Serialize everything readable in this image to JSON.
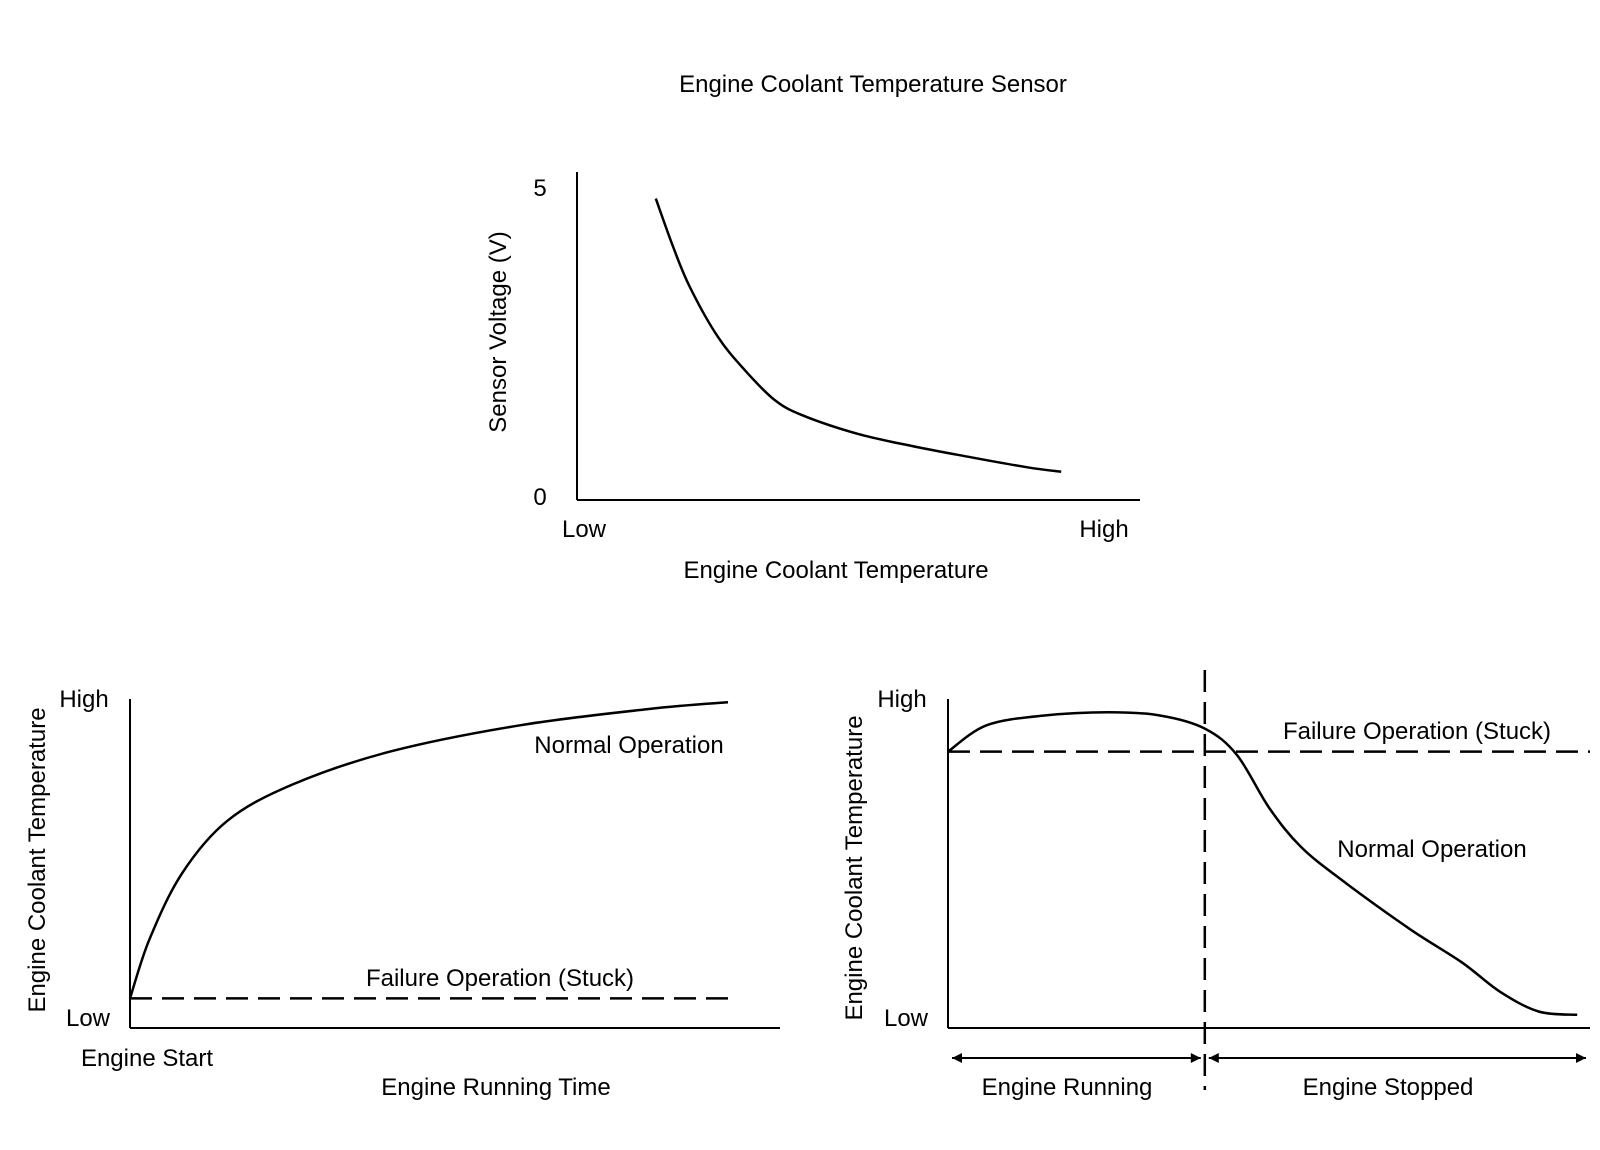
{
  "figure": {
    "title": "Engine Coolant Temperature Sensor"
  },
  "chart_data": [
    {
      "type": "line",
      "title": "",
      "xlabel": "Engine Coolant Temperature",
      "ylabel": "Sensor Voltage (V)",
      "x_tick_labels": [
        "Low",
        "High"
      ],
      "y_tick_labels": [
        "0",
        "5"
      ],
      "ylim": [
        0,
        5
      ],
      "grid": false,
      "series": [
        {
          "style": "solid",
          "x": [
            0.14,
            0.17,
            0.2,
            0.25,
            0.3,
            0.35,
            0.4,
            0.5,
            0.6,
            0.7,
            0.8,
            0.86
          ],
          "y": [
            4.8,
            4.05,
            3.4,
            2.6,
            2.05,
            1.6,
            1.35,
            1.05,
            0.85,
            0.68,
            0.52,
            0.45
          ]
        }
      ]
    },
    {
      "type": "line",
      "title": "",
      "xlabel": "Engine Running Time",
      "ylabel": "Engine Coolant Temperature",
      "x_tick_labels": [
        "Engine Start"
      ],
      "y_tick_labels": [
        "Low",
        "High"
      ],
      "ylim": [
        0,
        1
      ],
      "grid": false,
      "series": [
        {
          "name": "Normal Operation",
          "style": "solid",
          "x": [
            0,
            0.03,
            0.08,
            0.15,
            0.25,
            0.4,
            0.6,
            0.8,
            0.92
          ],
          "y": [
            0.09,
            0.27,
            0.47,
            0.63,
            0.74,
            0.84,
            0.92,
            0.97,
            0.99
          ]
        },
        {
          "name": "Failure Operation (Stuck)",
          "style": "dashed",
          "x": [
            0,
            0.92
          ],
          "y": [
            0.09,
            0.09
          ]
        }
      ]
    },
    {
      "type": "line",
      "title": "",
      "xlabel": "",
      "ylabel": "Engine Coolant Temperature",
      "y_tick_labels": [
        "Low",
        "High"
      ],
      "ylim": [
        0,
        1
      ],
      "grid": false,
      "phases": [
        {
          "label": "Engine Running",
          "range": [
            0,
            0.4
          ]
        },
        {
          "label": "Engine Stopped",
          "range": [
            0.4,
            1.0
          ]
        }
      ],
      "divider_x": 0.4,
      "series": [
        {
          "name": "Normal Operation",
          "style": "solid",
          "x": [
            0,
            0.06,
            0.15,
            0.25,
            0.33,
            0.4,
            0.45,
            0.5,
            0.55,
            0.62,
            0.72,
            0.8,
            0.86,
            0.92,
            0.98
          ],
          "y": [
            0.84,
            0.92,
            0.95,
            0.96,
            0.95,
            0.91,
            0.83,
            0.67,
            0.55,
            0.44,
            0.3,
            0.2,
            0.11,
            0.05,
            0.04
          ]
        },
        {
          "name": "Failure Operation (Stuck)",
          "style": "dashed",
          "x": [
            0,
            1.0
          ],
          "y": [
            0.84,
            0.84
          ]
        }
      ]
    }
  ]
}
